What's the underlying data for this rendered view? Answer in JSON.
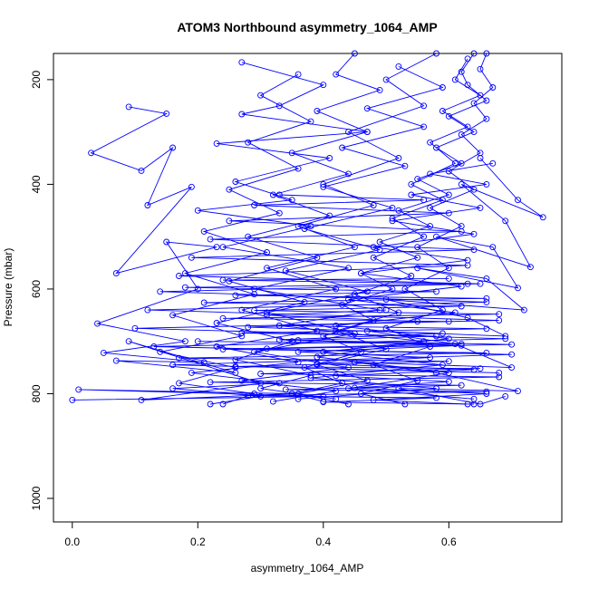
{
  "chart_data": {
    "type": "scatter",
    "title": "ATOM3 Northbound asymmetry_1064_AMP",
    "xlabel": "asymmetry_1064_AMP",
    "ylabel": "Pressure (mbar)",
    "xlim": [
      -0.03,
      0.78
    ],
    "ylim": [
      1045,
      150
    ],
    "y_reversed": true,
    "x_ticks": [
      0.0,
      0.2,
      0.4,
      0.6
    ],
    "x_tick_labels": [
      "0.0",
      "0.2",
      "0.4",
      "0.6"
    ],
    "y_ticks": [
      200,
      400,
      600,
      800,
      1000
    ],
    "y_tick_labels": [
      "200",
      "400",
      "600",
      "800",
      "1000"
    ],
    "grid": false,
    "legend": "none",
    "marker": "open-circle",
    "connected": true,
    "series_color": "#0000ff",
    "series": [
      {
        "values": [
          [
            0.64,
            150
          ],
          [
            0.62,
            185
          ],
          [
            0.63,
            210
          ],
          [
            0.66,
            240
          ],
          [
            0.6,
            270
          ],
          [
            0.64,
            300
          ],
          [
            0.58,
            330
          ],
          [
            0.62,
            360
          ],
          [
            0.55,
            390
          ],
          [
            0.6,
            420
          ],
          [
            0.52,
            450
          ],
          [
            0.57,
            480
          ],
          [
            0.49,
            510
          ],
          [
            0.55,
            540
          ],
          [
            0.46,
            570
          ],
          [
            0.51,
            600
          ],
          [
            0.43,
            630
          ],
          [
            0.48,
            660
          ],
          [
            0.4,
            690
          ],
          [
            0.46,
            720
          ],
          [
            0.37,
            750
          ],
          [
            0.43,
            780
          ],
          [
            0.35,
            800
          ],
          [
            0.4,
            815
          ]
        ]
      },
      {
        "values": [
          [
            0.27,
            167
          ],
          [
            0.4,
            210
          ],
          [
            0.33,
            250
          ],
          [
            0.27,
            266
          ],
          [
            0.47,
            300
          ],
          [
            0.23,
            322
          ],
          [
            0.41,
            350
          ],
          [
            0.26,
            395
          ],
          [
            0.35,
            430
          ],
          [
            0.2,
            450
          ],
          [
            0.38,
            480
          ],
          [
            0.24,
            520
          ],
          [
            0.44,
            560
          ],
          [
            0.29,
            600
          ],
          [
            0.49,
            640
          ],
          [
            0.33,
            670
          ],
          [
            0.56,
            700
          ],
          [
            0.39,
            730
          ],
          [
            0.6,
            760
          ],
          [
            0.44,
            790
          ],
          [
            0.64,
            810
          ]
        ]
      },
      {
        "values": [
          [
            0.09,
            252
          ],
          [
            0.15,
            265
          ],
          [
            0.03,
            340
          ],
          [
            0.11,
            374
          ],
          [
            0.16,
            330
          ],
          [
            0.12,
            440
          ],
          [
            0.19,
            405
          ],
          [
            0.07,
            570
          ],
          [
            0.23,
            520
          ],
          [
            0.15,
            510
          ],
          [
            0.2,
            600
          ],
          [
            0.04,
            666
          ],
          [
            0.18,
            700
          ],
          [
            0.05,
            722
          ],
          [
            0.21,
            740
          ],
          [
            0.07,
            737
          ],
          [
            0.26,
            760
          ],
          [
            0.09,
            700
          ],
          [
            0.3,
            780
          ],
          [
            0.11,
            812
          ],
          [
            0.35,
            800
          ],
          [
            0.01,
            792
          ],
          [
            0.4,
            805
          ],
          [
            0.0,
            812
          ]
        ]
      },
      {
        "values": [
          [
            0.65,
            350
          ],
          [
            0.71,
            430
          ],
          [
            0.75,
            463
          ],
          [
            0.62,
            400
          ],
          [
            0.69,
            470
          ],
          [
            0.73,
            558
          ],
          [
            0.58,
            500
          ],
          [
            0.67,
            520
          ],
          [
            0.71,
            598
          ],
          [
            0.55,
            560
          ],
          [
            0.66,
            580
          ],
          [
            0.72,
            640
          ],
          [
            0.5,
            620
          ],
          [
            0.63,
            655
          ],
          [
            0.69,
            690
          ],
          [
            0.47,
            680
          ],
          [
            0.61,
            705
          ],
          [
            0.7,
            750
          ],
          [
            0.45,
            740
          ],
          [
            0.58,
            760
          ],
          [
            0.71,
            795
          ],
          [
            0.52,
            790
          ],
          [
            0.65,
            820
          ],
          [
            0.69,
            805
          ]
        ]
      },
      {
        "values": [
          [
            0.58,
            150
          ],
          [
            0.5,
            200
          ],
          [
            0.56,
            250
          ],
          [
            0.44,
            300
          ],
          [
            0.52,
            350
          ],
          [
            0.4,
            400
          ],
          [
            0.48,
            440
          ],
          [
            0.36,
            480
          ],
          [
            0.45,
            520
          ],
          [
            0.31,
            560
          ],
          [
            0.42,
            600
          ],
          [
            0.27,
            640
          ],
          [
            0.39,
            680
          ],
          [
            0.23,
            710
          ],
          [
            0.36,
            740
          ],
          [
            0.19,
            760
          ],
          [
            0.33,
            780
          ],
          [
            0.16,
            790
          ],
          [
            0.3,
            805
          ],
          [
            0.22,
            820
          ]
        ]
      },
      {
        "values": [
          [
            0.63,
            160
          ],
          [
            0.61,
            200
          ],
          [
            0.65,
            230
          ],
          [
            0.59,
            260
          ],
          [
            0.63,
            290
          ],
          [
            0.57,
            320
          ],
          [
            0.61,
            360
          ],
          [
            0.54,
            400
          ],
          [
            0.59,
            430
          ],
          [
            0.51,
            465
          ],
          [
            0.56,
            500
          ],
          [
            0.48,
            540
          ],
          [
            0.54,
            575
          ],
          [
            0.45,
            610
          ],
          [
            0.52,
            645
          ],
          [
            0.42,
            680
          ],
          [
            0.5,
            715
          ],
          [
            0.39,
            745
          ],
          [
            0.47,
            775
          ],
          [
            0.36,
            800
          ],
          [
            0.44,
            820
          ]
        ]
      },
      {
        "values": [
          [
            0.36,
            190
          ],
          [
            0.3,
            230
          ],
          [
            0.38,
            280
          ],
          [
            0.28,
            320
          ],
          [
            0.36,
            370
          ],
          [
            0.25,
            410
          ],
          [
            0.33,
            455
          ],
          [
            0.21,
            490
          ],
          [
            0.31,
            530
          ],
          [
            0.18,
            570
          ],
          [
            0.29,
            610
          ],
          [
            0.16,
            650
          ],
          [
            0.27,
            690
          ],
          [
            0.14,
            720
          ],
          [
            0.26,
            750
          ],
          [
            0.17,
            780
          ],
          [
            0.29,
            800
          ],
          [
            0.24,
            820
          ]
        ]
      },
      {
        "values": [
          [
            0.66,
            150
          ],
          [
            0.65,
            180
          ],
          [
            0.67,
            215
          ],
          [
            0.64,
            245
          ],
          [
            0.66,
            275
          ],
          [
            0.62,
            305
          ],
          [
            0.65,
            340
          ],
          [
            0.6,
            375
          ],
          [
            0.64,
            410
          ],
          [
            0.57,
            445
          ],
          [
            0.62,
            480
          ],
          [
            0.55,
            520
          ],
          [
            0.6,
            560
          ],
          [
            0.53,
            600
          ],
          [
            0.59,
            640
          ],
          [
            0.5,
            675
          ],
          [
            0.57,
            710
          ],
          [
            0.48,
            745
          ],
          [
            0.55,
            775
          ],
          [
            0.46,
            800
          ],
          [
            0.53,
            820
          ]
        ]
      },
      {
        "values": [
          [
            0.33,
            420
          ],
          [
            0.56,
            430
          ],
          [
            0.29,
            440
          ],
          [
            0.6,
            455
          ],
          [
            0.25,
            470
          ],
          [
            0.62,
            490
          ],
          [
            0.22,
            505
          ],
          [
            0.64,
            525
          ],
          [
            0.19,
            540
          ],
          [
            0.63,
            555
          ],
          [
            0.17,
            575
          ],
          [
            0.65,
            590
          ],
          [
            0.14,
            605
          ],
          [
            0.66,
            625
          ],
          [
            0.12,
            640
          ],
          [
            0.68,
            660
          ],
          [
            0.1,
            675
          ],
          [
            0.69,
            695
          ],
          [
            0.13,
            710
          ],
          [
            0.7,
            725
          ],
          [
            0.16,
            745
          ],
          [
            0.68,
            760
          ]
        ]
      },
      {
        "values": [
          [
            0.2,
            700
          ],
          [
            0.62,
            705
          ],
          [
            0.24,
            715
          ],
          [
            0.66,
            722
          ],
          [
            0.17,
            732
          ],
          [
            0.6,
            738
          ],
          [
            0.26,
            748
          ],
          [
            0.65,
            752
          ],
          [
            0.3,
            762
          ],
          [
            0.68,
            768
          ],
          [
            0.22,
            778
          ],
          [
            0.62,
            784
          ],
          [
            0.34,
            792
          ],
          [
            0.66,
            796
          ],
          [
            0.28,
            804
          ],
          [
            0.58,
            808
          ],
          [
            0.4,
            816
          ],
          [
            0.64,
            820
          ]
        ]
      },
      {
        "values": [
          [
            0.45,
            150
          ],
          [
            0.42,
            190
          ],
          [
            0.49,
            220
          ],
          [
            0.39,
            260
          ],
          [
            0.47,
            300
          ],
          [
            0.35,
            340
          ],
          [
            0.44,
            380
          ],
          [
            0.32,
            420
          ],
          [
            0.41,
            460
          ],
          [
            0.28,
            500
          ],
          [
            0.39,
            540
          ],
          [
            0.25,
            585
          ],
          [
            0.37,
            625
          ],
          [
            0.23,
            665
          ],
          [
            0.35,
            700
          ],
          [
            0.26,
            735
          ],
          [
            0.38,
            765
          ],
          [
            0.3,
            790
          ],
          [
            0.42,
            810
          ]
        ]
      },
      {
        "values": [
          [
            0.52,
            175
          ],
          [
            0.59,
            215
          ],
          [
            0.47,
            255
          ],
          [
            0.56,
            290
          ],
          [
            0.43,
            330
          ],
          [
            0.53,
            365
          ],
          [
            0.4,
            405
          ],
          [
            0.51,
            445
          ],
          [
            0.37,
            485
          ],
          [
            0.49,
            525
          ],
          [
            0.34,
            565
          ],
          [
            0.47,
            605
          ],
          [
            0.31,
            645
          ],
          [
            0.45,
            685
          ],
          [
            0.29,
            720
          ],
          [
            0.44,
            750
          ],
          [
            0.27,
            775
          ],
          [
            0.42,
            795
          ],
          [
            0.32,
            815
          ]
        ]
      },
      {
        "values": [
          [
            0.67,
            360
          ],
          [
            0.57,
            380
          ],
          [
            0.66,
            400
          ],
          [
            0.54,
            420
          ],
          [
            0.65,
            445
          ],
          [
            0.51,
            470
          ],
          [
            0.64,
            495
          ],
          [
            0.48,
            520
          ],
          [
            0.63,
            545
          ],
          [
            0.46,
            570
          ],
          [
            0.62,
            595
          ],
          [
            0.44,
            620
          ],
          [
            0.61,
            645
          ],
          [
            0.42,
            670
          ],
          [
            0.6,
            695
          ],
          [
            0.4,
            720
          ],
          [
            0.59,
            745
          ],
          [
            0.38,
            770
          ],
          [
            0.58,
            790
          ],
          [
            0.36,
            810
          ]
        ]
      },
      {
        "values": [
          [
            0.6,
            580
          ],
          [
            0.24,
            583
          ],
          [
            0.63,
            590
          ],
          [
            0.18,
            597
          ],
          [
            0.58,
            605
          ],
          [
            0.26,
            612
          ],
          [
            0.66,
            618
          ],
          [
            0.21,
            626
          ],
          [
            0.62,
            633
          ],
          [
            0.29,
            641
          ],
          [
            0.68,
            648
          ],
          [
            0.24,
            656
          ],
          [
            0.6,
            662
          ],
          [
            0.33,
            670
          ],
          [
            0.66,
            676
          ],
          [
            0.27,
            684
          ],
          [
            0.58,
            690
          ],
          [
            0.36,
            698
          ],
          [
            0.7,
            706
          ],
          [
            0.31,
            714
          ]
        ]
      },
      {
        "values": [
          [
            0.5,
            640
          ],
          [
            0.31,
            650
          ],
          [
            0.55,
            662
          ],
          [
            0.28,
            673
          ],
          [
            0.59,
            685
          ],
          [
            0.33,
            697
          ],
          [
            0.62,
            708
          ],
          [
            0.36,
            720
          ],
          [
            0.57,
            731
          ],
          [
            0.39,
            743
          ],
          [
            0.64,
            754
          ],
          [
            0.42,
            766
          ],
          [
            0.6,
            777
          ],
          [
            0.45,
            789
          ],
          [
            0.66,
            800
          ],
          [
            0.48,
            812
          ],
          [
            0.63,
            820
          ]
        ]
      }
    ]
  }
}
